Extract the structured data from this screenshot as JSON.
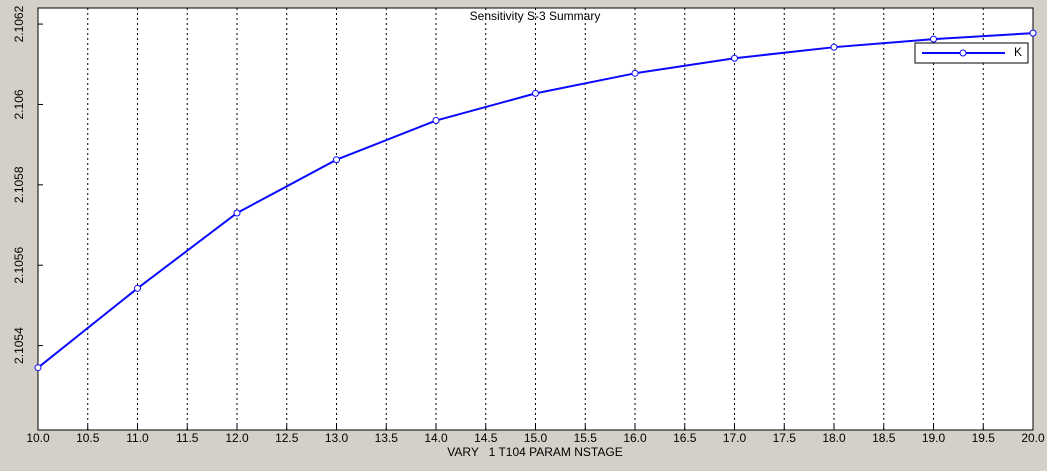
{
  "chart_data": {
    "type": "line",
    "title": "Sensitivity S-3 Summary",
    "x_label": "VARY   1 T104 PARAM NSTAGE",
    "x": [
      10,
      11,
      12,
      13,
      14,
      15,
      16,
      17,
      18,
      19,
      20
    ],
    "series": [
      {
        "name": "K",
        "color": "#0a0aff",
        "values": [
          2.105345,
          2.1055425,
          2.10573,
          2.1058625,
          2.10596,
          2.1060275,
          2.1060775,
          2.106115,
          2.1061425,
          2.1061625,
          2.1061775
        ]
      }
    ],
    "xlim": [
      10,
      20
    ],
    "xticks": [
      {
        "value": 10,
        "label": "10.0"
      },
      {
        "value": 10.5,
        "label": "10.5"
      },
      {
        "value": 11,
        "label": "11.0"
      },
      {
        "value": 11.5,
        "label": "11.5"
      },
      {
        "value": 12,
        "label": "12.0"
      },
      {
        "value": 12.5,
        "label": "12.5"
      },
      {
        "value": 13,
        "label": "13.0"
      },
      {
        "value": 13.5,
        "label": "13.5"
      },
      {
        "value": 14,
        "label": "14.0"
      },
      {
        "value": 14.5,
        "label": "14.5"
      },
      {
        "value": 15,
        "label": "15.0"
      },
      {
        "value": 15.5,
        "label": "15.5"
      },
      {
        "value": 16,
        "label": "16.0"
      },
      {
        "value": 16.5,
        "label": "16.5"
      },
      {
        "value": 17,
        "label": "17.0"
      },
      {
        "value": 17.5,
        "label": "17.5"
      },
      {
        "value": 18,
        "label": "18.0"
      },
      {
        "value": 18.5,
        "label": "18.5"
      },
      {
        "value": 19,
        "label": "19.0"
      },
      {
        "value": 19.5,
        "label": "19.5"
      },
      {
        "value": 20,
        "label": "20.0"
      }
    ],
    "ylim": [
      2.10519,
      2.10624
    ],
    "yticks": [
      2.1054,
      2.1056,
      2.1058,
      2.106,
      2.1062
    ],
    "grid": "x",
    "legend": "upper right"
  }
}
